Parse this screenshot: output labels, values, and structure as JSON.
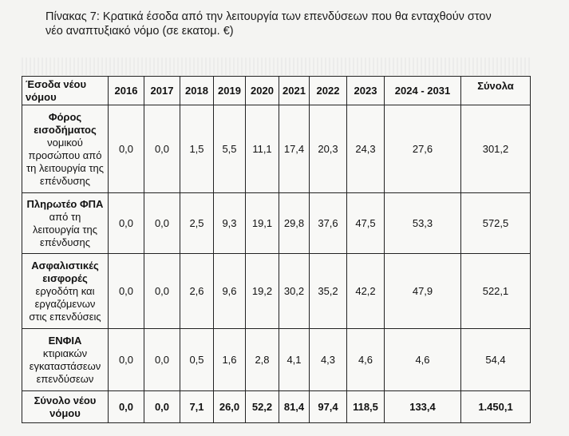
{
  "title": {
    "line1": "Πίνακας 7: Κρατικά έσοδα από την λειτουργία των επενδύσεων που θα ενταχθούν στον",
    "line2": "νέο αναπτυξιακό νόμο (σε εκατομ. €)"
  },
  "table": {
    "header": {
      "first_line1": "Έσοδα νέου",
      "first_line2": "νόμου",
      "years": [
        "2016",
        "2017",
        "2018",
        "2019",
        "2020",
        "2021",
        "2022",
        "2023",
        "2024 - 2031"
      ],
      "sum": "Σύνολα"
    },
    "rows": [
      {
        "label_bold": "Φόρος εισοδήματος",
        "label_rest": "νομικού προσώπου από τη λειτουργία της επένδυσης",
        "values": [
          "0,0",
          "0,0",
          "1,5",
          "5,5",
          "11,1",
          "17,4",
          "20,3",
          "24,3",
          "27,6",
          "301,2"
        ]
      },
      {
        "label_bold": "Πληρωτέο ΦΠΑ",
        "label_rest": "από τη λειτουργία της επένδυσης",
        "values": [
          "0,0",
          "0,0",
          "2,5",
          "9,3",
          "19,1",
          "29,8",
          "37,6",
          "47,5",
          "53,3",
          "572,5"
        ]
      },
      {
        "label_bold": "Ασφαλιστικές εισφορές",
        "label_rest": "εργοδότη και εργαζόμενων στις επενδύσεις",
        "values": [
          "0,0",
          "0,0",
          "2,6",
          "9,6",
          "19,2",
          "30,2",
          "35,2",
          "42,2",
          "47,9",
          "522,1"
        ]
      },
      {
        "label_bold": "ΕΝΦΙΑ",
        "label_rest": "κτιριακών εγκαταστάσεων επενδύσεων",
        "values": [
          "0,0",
          "0,0",
          "0,5",
          "1,6",
          "2,8",
          "4,1",
          "4,3",
          "4,6",
          "4,6",
          "54,4"
        ]
      }
    ],
    "total": {
      "label": "Σύνολο νέου νόμου",
      "values": [
        "0,0",
        "0,0",
        "7,1",
        "26,0",
        "52,2",
        "81,4",
        "97,4",
        "118,5",
        "133,4",
        "1.450,1"
      ]
    }
  }
}
